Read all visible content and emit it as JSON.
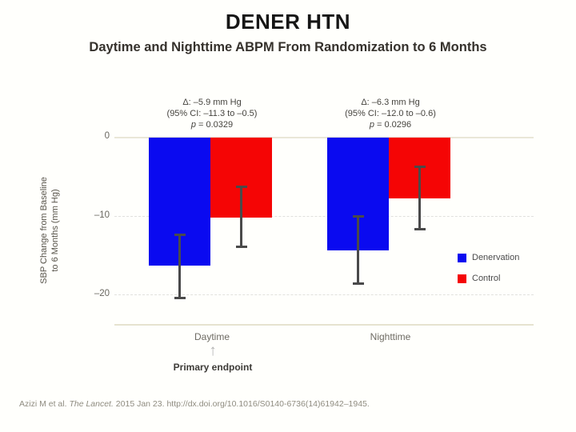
{
  "chart_data": {
    "type": "bar",
    "title": "DENER HTN",
    "subtitle": "Daytime and Nighttime ABPM From Randomization to 6 Months",
    "categories": [
      "Daytime",
      "Nighttime"
    ],
    "series": [
      {
        "name": "Denervation",
        "color": "#0a0af0",
        "values": [
          -16.2,
          -14.3
        ],
        "error_bars": [
          [
            -20.4,
            -12.3
          ],
          [
            -18.6,
            -9.9
          ]
        ]
      },
      {
        "name": "Control",
        "color": "#f50505",
        "values": [
          -10.2,
          -7.7
        ],
        "error_bars": [
          [
            -13.9,
            -6.2
          ],
          [
            -11.7,
            -3.7
          ]
        ]
      }
    ],
    "ylabel_line1": "SBP Change from Baseline",
    "ylabel_line2": "to 6 Months (mm Hg)",
    "ylabel": "SBP Change from Baseline to 6 Months (mm Hg)",
    "yticks": [
      "0",
      "–10",
      "–20"
    ],
    "ytick_values": [
      0,
      -10,
      -20
    ],
    "ylim": [
      -24,
      0
    ],
    "grid": "horizontal dashed gridlines at -10 and -20, solid line at 0, legend at right",
    "legend_position": "right",
    "annotations": [
      {
        "delta": "Δ: –5.9 mm Hg",
        "ci": "(95% CI: –11.3 to –0.5)",
        "p_prefix": "p",
        "p_text": " = 0.0329"
      },
      {
        "delta": "Δ: –6.3 mm Hg",
        "ci": "(95% CI: –12.0 to –0.6)",
        "p_prefix": "p",
        "p_text": " = 0.0296"
      }
    ]
  },
  "slide": {
    "primary_endpoint_label": "Primary endpoint",
    "primary_endpoint_arrow": "↑",
    "citation_prefix": "Azizi M et al. ",
    "citation_journal": "The Lancet.",
    "citation_suffix": " 2015 Jan 23. http://dx.doi.org/10.1016/S0140-6736(14)61942–1945."
  }
}
